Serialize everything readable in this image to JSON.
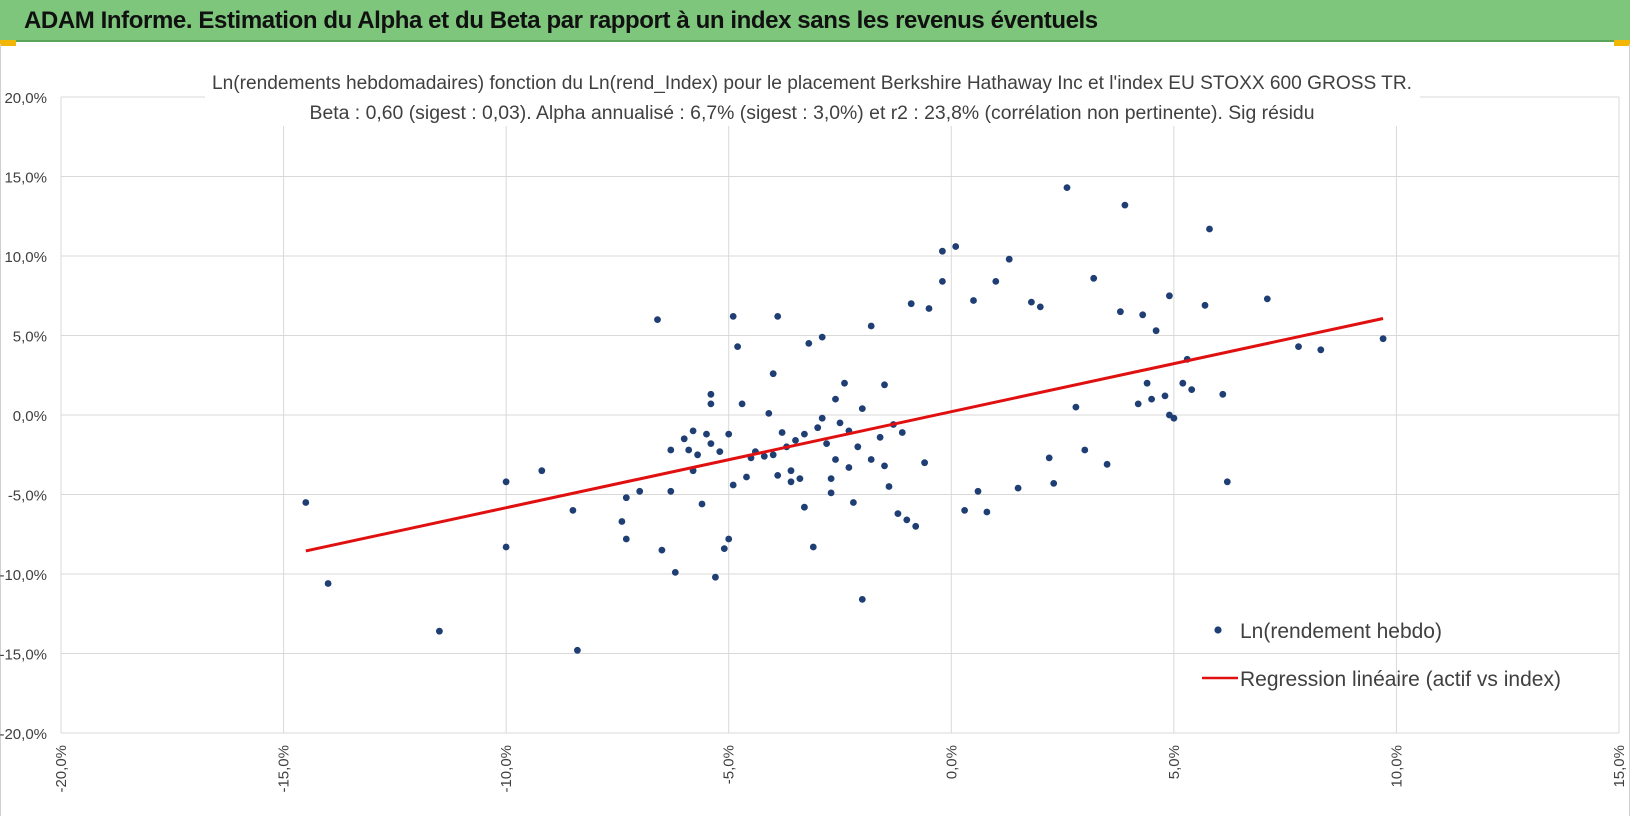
{
  "header": {
    "title": "ADAM Informe. Estimation du Alpha et du Beta par rapport à un index sans les revenus éventuels"
  },
  "colors": {
    "header_bg": "#7dc67c",
    "corner_accent": "#f2b705",
    "points": "#1f3f74",
    "regression": "#e01010",
    "grid": "#d9d9d9"
  },
  "chart_data": {
    "type": "scatter",
    "title": "Ln(rendements hebdomadaires) fonction du Ln(rend_Index) pour le placement Berkshire Hathaway Inc et l'index EU STOXX 600 GROSS TR.",
    "subtitle": "Beta : 0,60 (sigest : 0,03).  Alpha annualisé : 6,7% (sigest : 3,0%) et r2 : 23,8% (corrélation non pertinente). Sig résidu",
    "xlabel": "",
    "ylabel": "",
    "xlim": [
      -20,
      15
    ],
    "ylim": [
      -20,
      20
    ],
    "x_ticks": [
      -20,
      -15,
      -10,
      -5,
      0,
      5,
      10,
      15
    ],
    "y_ticks": [
      -20,
      -15,
      -10,
      -5,
      0,
      5,
      10,
      15,
      20
    ],
    "x_tick_labels": [
      "-20,0%",
      "-15,0%",
      "-10,0%",
      "-5,0%",
      "0,0%",
      "5,0%",
      "10,0%",
      "15,0%"
    ],
    "y_tick_labels": [
      "-20,0%",
      "-15,0%",
      "-10,0%",
      "-5,0%",
      "0,0%",
      "5,0%",
      "10,0%",
      "15,0%",
      "20,0%"
    ],
    "grid": true,
    "legend_position": "bottom-right",
    "series": [
      {
        "name": "Ln(rendement hebdo)",
        "kind": "scatter",
        "color": "#1f3f74",
        "points": [
          [
            -14.5,
            -5.5
          ],
          [
            -14.0,
            -10.6
          ],
          [
            -11.5,
            -13.6
          ],
          [
            -10.0,
            -4.2
          ],
          [
            -10.0,
            -8.3
          ],
          [
            -9.2,
            -3.5
          ],
          [
            -8.5,
            -6.0
          ],
          [
            -8.4,
            -14.8
          ],
          [
            -7.4,
            -6.7
          ],
          [
            -7.3,
            -5.2
          ],
          [
            -7.3,
            -7.8
          ],
          [
            -7.0,
            -4.8
          ],
          [
            -6.6,
            6.0
          ],
          [
            -6.5,
            -8.5
          ],
          [
            -6.3,
            -2.2
          ],
          [
            -6.3,
            -4.8
          ],
          [
            -6.2,
            -9.9
          ],
          [
            -6.0,
            -1.5
          ],
          [
            -5.9,
            -2.2
          ],
          [
            -5.8,
            -1.0
          ],
          [
            -5.8,
            -3.5
          ],
          [
            -5.7,
            -2.5
          ],
          [
            -5.6,
            -5.6
          ],
          [
            -5.5,
            -1.2
          ],
          [
            -5.4,
            1.3
          ],
          [
            -5.4,
            0.7
          ],
          [
            -5.4,
            -1.8
          ],
          [
            -5.3,
            -10.2
          ],
          [
            -5.2,
            -2.3
          ],
          [
            -5.1,
            -8.4
          ],
          [
            -5.0,
            -7.8
          ],
          [
            -5.0,
            -1.2
          ],
          [
            -4.9,
            6.2
          ],
          [
            -4.9,
            -4.4
          ],
          [
            -4.8,
            4.3
          ],
          [
            -4.7,
            0.7
          ],
          [
            -4.6,
            -3.9
          ],
          [
            -4.5,
            -2.7
          ],
          [
            -4.4,
            -2.3
          ],
          [
            -4.2,
            -2.6
          ],
          [
            -4.1,
            0.1
          ],
          [
            -4.0,
            2.6
          ],
          [
            -4.0,
            -2.5
          ],
          [
            -3.9,
            6.2
          ],
          [
            -3.9,
            -3.8
          ],
          [
            -3.8,
            -1.1
          ],
          [
            -3.7,
            -2.0
          ],
          [
            -3.6,
            -3.5
          ],
          [
            -3.6,
            -4.2
          ],
          [
            -3.5,
            -1.6
          ],
          [
            -3.4,
            -4.0
          ],
          [
            -3.3,
            -1.2
          ],
          [
            -3.3,
            -5.8
          ],
          [
            -3.2,
            4.5
          ],
          [
            -3.1,
            -8.3
          ],
          [
            -3.0,
            -0.8
          ],
          [
            -2.9,
            4.9
          ],
          [
            -2.9,
            -0.2
          ],
          [
            -2.8,
            -1.8
          ],
          [
            -2.7,
            -4.9
          ],
          [
            -2.7,
            -4.0
          ],
          [
            -2.6,
            1.0
          ],
          [
            -2.6,
            -2.8
          ],
          [
            -2.5,
            -0.5
          ],
          [
            -2.4,
            2.0
          ],
          [
            -2.3,
            -1.0
          ],
          [
            -2.3,
            -3.3
          ],
          [
            -2.2,
            -5.5
          ],
          [
            -2.1,
            -2.0
          ],
          [
            -2.0,
            -11.6
          ],
          [
            -2.0,
            0.4
          ],
          [
            -1.8,
            5.6
          ],
          [
            -1.8,
            -2.8
          ],
          [
            -1.6,
            -1.4
          ],
          [
            -1.5,
            -3.2
          ],
          [
            -1.5,
            1.9
          ],
          [
            -1.4,
            -4.5
          ],
          [
            -1.3,
            -0.6
          ],
          [
            -1.2,
            -6.2
          ],
          [
            -1.1,
            -1.1
          ],
          [
            -1.0,
            -6.6
          ],
          [
            -0.9,
            7.0
          ],
          [
            -0.8,
            -7.0
          ],
          [
            -0.6,
            -3.0
          ],
          [
            -0.5,
            6.7
          ],
          [
            -0.2,
            10.3
          ],
          [
            -0.2,
            8.4
          ],
          [
            0.1,
            10.6
          ],
          [
            0.3,
            -6.0
          ],
          [
            0.5,
            7.2
          ],
          [
            0.6,
            -4.8
          ],
          [
            0.8,
            -6.1
          ],
          [
            1.0,
            8.4
          ],
          [
            1.3,
            9.8
          ],
          [
            1.5,
            -4.6
          ],
          [
            1.8,
            7.1
          ],
          [
            2.0,
            6.8
          ],
          [
            2.2,
            -2.7
          ],
          [
            2.3,
            -4.3
          ],
          [
            2.6,
            14.3
          ],
          [
            2.8,
            0.5
          ],
          [
            3.0,
            -2.2
          ],
          [
            3.2,
            8.6
          ],
          [
            3.5,
            -3.1
          ],
          [
            3.8,
            6.5
          ],
          [
            3.9,
            13.2
          ],
          [
            4.2,
            0.7
          ],
          [
            4.3,
            6.3
          ],
          [
            4.4,
            2.0
          ],
          [
            4.5,
            1.0
          ],
          [
            4.6,
            5.3
          ],
          [
            4.8,
            1.2
          ],
          [
            4.9,
            7.5
          ],
          [
            4.9,
            0.0
          ],
          [
            5.0,
            -0.2
          ],
          [
            5.2,
            2.0
          ],
          [
            5.3,
            3.5
          ],
          [
            5.4,
            1.6
          ],
          [
            5.7,
            6.9
          ],
          [
            5.8,
            11.7
          ],
          [
            6.1,
            1.3
          ],
          [
            6.2,
            -4.2
          ],
          [
            7.1,
            7.3
          ],
          [
            7.8,
            4.3
          ],
          [
            8.3,
            4.1
          ],
          [
            9.7,
            4.8
          ]
        ]
      },
      {
        "name": "Regression linéaire (actif vs index)",
        "kind": "line",
        "color": "#e01010",
        "points": [
          [
            -14.5,
            -8.55
          ],
          [
            9.7,
            6.07
          ]
        ]
      }
    ]
  }
}
